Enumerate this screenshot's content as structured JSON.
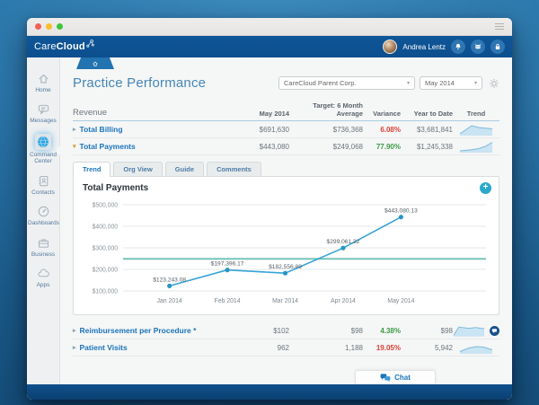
{
  "window": {
    "traffic_lights": [
      "#f15f57",
      "#f8bd2f",
      "#3cc63f"
    ],
    "menu_icon": "hamburger-icon"
  },
  "navbar": {
    "brand_prefix": "Care",
    "brand_suffix": "Cloud",
    "logo_icon": "molecule-icon",
    "home_tab_icon": "home-icon",
    "user": {
      "name": "Andrea Lentz"
    },
    "action_icons": [
      "bell-icon",
      "support-icon",
      "lock-icon"
    ],
    "bar_color": "#0d5294"
  },
  "sidebar": {
    "items": [
      {
        "label": "Home",
        "icon": "home-icon",
        "active": false
      },
      {
        "label": "Messages",
        "icon": "messages-icon",
        "active": false
      },
      {
        "label": "Command Center",
        "icon": "command-center-icon",
        "active": true
      },
      {
        "label": "Contacts",
        "icon": "contacts-icon",
        "active": false
      },
      {
        "label": "Dashboards",
        "icon": "dashboards-icon",
        "active": false
      },
      {
        "label": "Business",
        "icon": "business-icon",
        "active": false
      },
      {
        "label": "Apps",
        "icon": "apps-icon",
        "active": false
      }
    ]
  },
  "header": {
    "title": "Practice Performance",
    "org_select": "CareCloud Parent Corp.",
    "period_select": "May 2014",
    "settings_icon": "gear-icon"
  },
  "metrics_table": {
    "columns": {
      "label": "Revenue",
      "current": "May 2014",
      "target_line1": "Target: 6 Month",
      "target_line2": "Average",
      "variance": "Variance",
      "ytd": "Year to Date",
      "trend": "Trend"
    },
    "rows": [
      {
        "label": "Total Billing",
        "expanded": false,
        "current": "$691,630",
        "target": "$736,368",
        "variance": "6.08%",
        "variance_color": "#dd4237",
        "ytd": "$3,681,841",
        "trend_shape": "rise-peak"
      },
      {
        "label": "Total Payments",
        "expanded": true,
        "current": "$443,080",
        "target": "$249,068",
        "variance": "77.90%",
        "variance_color": "#3d9b47",
        "ytd": "$1,245,338",
        "trend_shape": "rising"
      },
      {
        "label": "Reimbursement per Procedure *",
        "expanded": false,
        "current": "$102",
        "target": "$98",
        "variance": "4.38%",
        "variance_color": "#3d9b47",
        "ytd": "$98",
        "trend_shape": "step-up",
        "comment_icon": "comment-icon"
      },
      {
        "label": "Patient Visits",
        "expanded": false,
        "current": "962",
        "target": "1,188",
        "variance": "19.05%",
        "variance_color": "#dd4237",
        "ytd": "5,942",
        "trend_shape": "hump"
      }
    ]
  },
  "tabs": [
    {
      "label": "Trend",
      "active": true
    },
    {
      "label": "Org View",
      "active": false
    },
    {
      "label": "Guide",
      "active": false
    },
    {
      "label": "Comments",
      "active": false
    }
  ],
  "chart_data": {
    "type": "line",
    "title": "Total Payments",
    "x": [
      "Jan 2014",
      "Feb 2014",
      "Mar 2014",
      "Apr 2014",
      "May 2014"
    ],
    "series": [
      {
        "name": "Total Payments",
        "values": [
          123243.08,
          197396.17,
          182556.89,
          299061.32,
          443080.13
        ]
      }
    ],
    "point_labels": [
      "$123,243.08",
      "$197,396.17",
      "$182,556.89",
      "$299,061.32",
      "$443,080.13"
    ],
    "target_line": 249068,
    "ylim": [
      100000,
      500000
    ],
    "ytick_labels": [
      "$500,000",
      "$400,000",
      "$300,000",
      "$200,000",
      "$100,000"
    ],
    "grid": true,
    "legend": "none",
    "line_color": "#35a3d7",
    "point_color": "#2596c4",
    "target_color": "#5cbcae",
    "add_icon": "plus-icon"
  },
  "chat": {
    "label": "Chat",
    "icon": "chat-icon"
  }
}
